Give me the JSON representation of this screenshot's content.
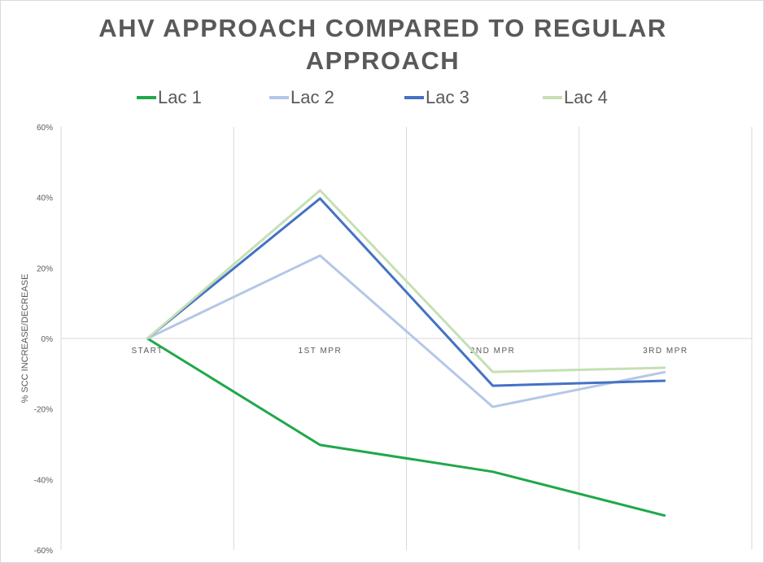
{
  "chart_data": {
    "type": "line",
    "title": "AHV APPROACH COMPARED TO REGULAR APPROACH",
    "title_lines": [
      "AHV APPROACH COMPARED TO REGULAR",
      "APPROACH"
    ],
    "xlabel": "",
    "ylabel": "% SCC INCREASE/DECREASE",
    "categories": [
      "START",
      "1ST MPR",
      "2ND MPR",
      "3RD MPR"
    ],
    "ylim": [
      -60,
      60
    ],
    "yticks": [
      60,
      40,
      20,
      0,
      -20,
      -40,
      -60
    ],
    "ytick_labels": [
      "60%",
      "40%",
      "20%",
      "0%",
      "-20%",
      "-40%",
      "-60%"
    ],
    "grid": "vertical",
    "legend_position": "top",
    "series": [
      {
        "name": "Lac 1",
        "color": "#1fa84a",
        "values": [
          0,
          -30.2,
          -37.8,
          -50.3
        ]
      },
      {
        "name": "Lac 2",
        "color": "#b4c7e7",
        "values": [
          0,
          23.5,
          -19.4,
          -9.5
        ]
      },
      {
        "name": "Lac 3",
        "color": "#4472c4",
        "values": [
          0,
          39.7,
          -13.4,
          -12.0
        ]
      },
      {
        "name": "Lac 4",
        "color": "#c5e0b4",
        "values": [
          0,
          42.0,
          -9.5,
          -8.3
        ]
      }
    ]
  }
}
